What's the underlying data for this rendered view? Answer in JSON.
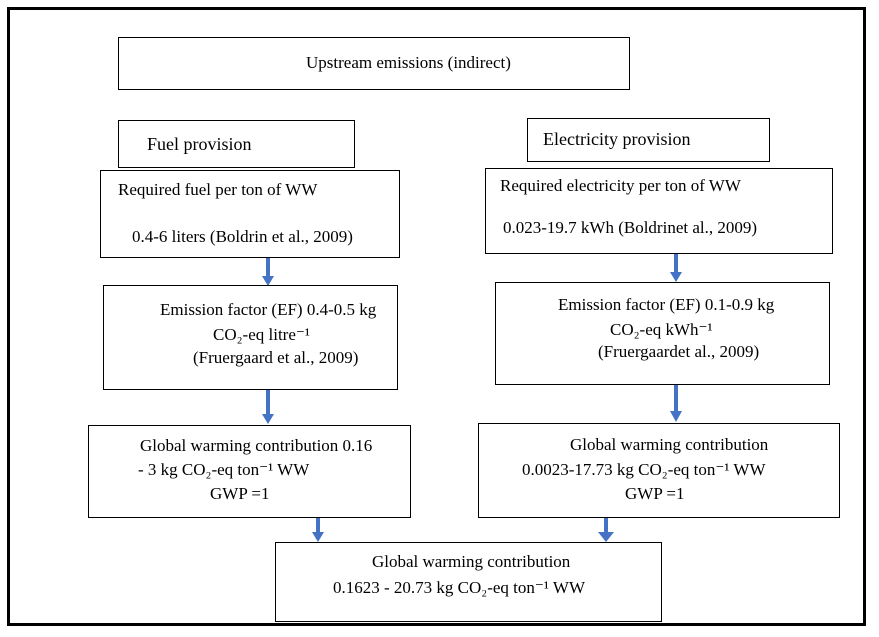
{
  "title": "Upstream emissions (indirect)",
  "fuel": {
    "heading": "Fuel provision",
    "required": [
      "Required fuel per ton of WW",
      "0.4-6 liters (Boldrin et al., 2009)"
    ],
    "emission_factor": [
      "Emission factor (EF) 0.4-0.5 kg",
      "CO₂-eq litre⁻¹",
      "(Fruergaard et al., 2009)"
    ],
    "contribution": [
      "Global warming contribution 0.16",
      "- 3 kg CO₂-eq ton⁻¹ WW",
      "GWP =1"
    ]
  },
  "electricity": {
    "heading": "Electricity provision",
    "required": [
      "Required electricity per ton of WW",
      "0.023-19.7 kWh (Boldrinet al., 2009)"
    ],
    "emission_factor": [
      "Emission factor (EF)   0.1-0.9 kg",
      "CO₂-eq kWh⁻¹",
      "(Fruergaardet al., 2009)"
    ],
    "contribution": [
      "Global warming contribution",
      "0.0023-17.73 kg CO₂-eq ton⁻¹ WW",
      "GWP =1"
    ]
  },
  "total": [
    "Global warming contribution",
    "0.1623 - 20.73 kg CO₂-eq ton⁻¹ WW"
  ]
}
